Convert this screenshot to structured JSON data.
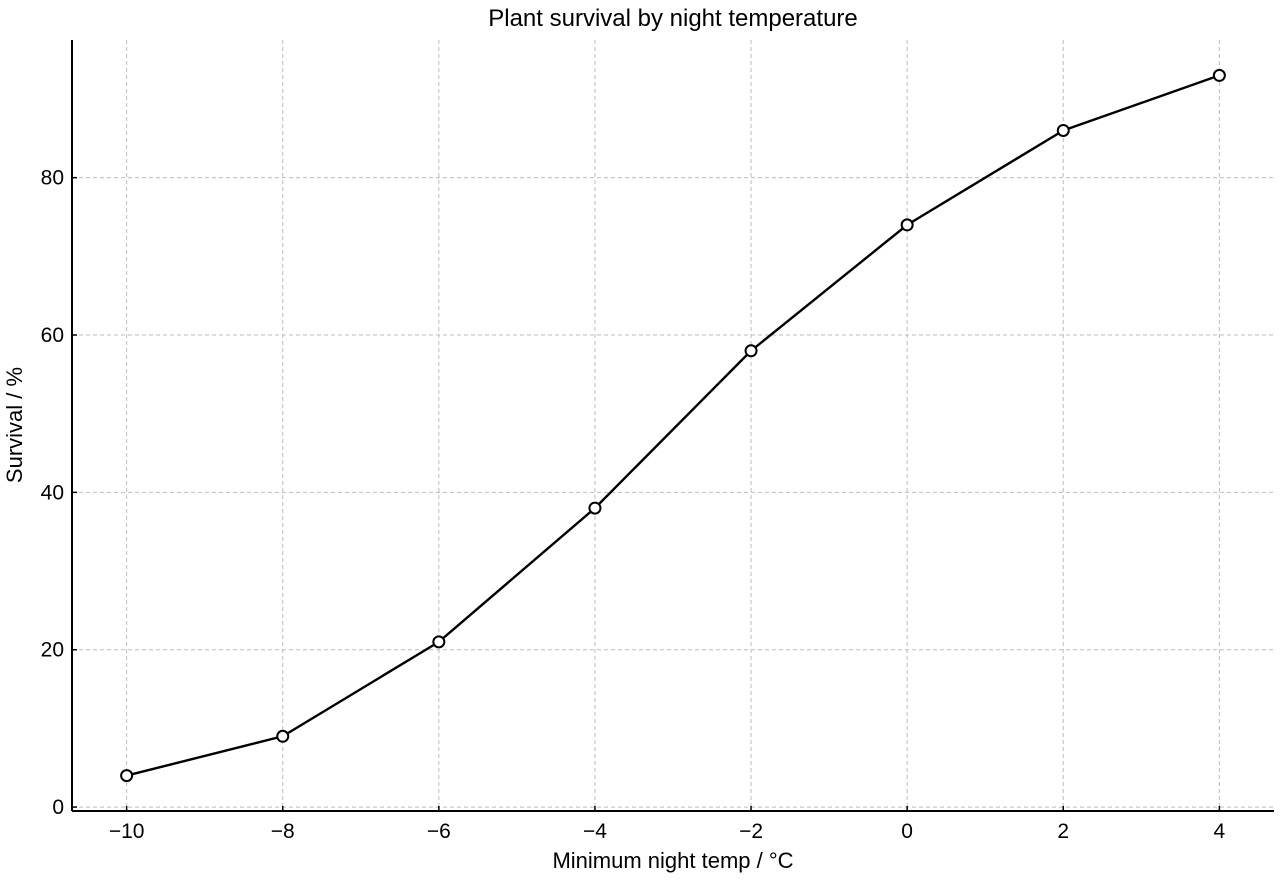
{
  "chart_data": {
    "type": "line",
    "title": "Plant survival by night temperature",
    "xlabel": "Minimum night temp / °C",
    "ylabel": "Survival / %",
    "xlim": [
      -10.7,
      4.7
    ],
    "ylim": [
      -0.5,
      97.5
    ],
    "x_ticks": [
      -10,
      -8,
      -6,
      -4,
      -2,
      0,
      2,
      4
    ],
    "x_tick_labels": [
      "−10",
      "−8",
      "−6",
      "−4",
      "−2",
      "0",
      "2",
      "4"
    ],
    "y_ticks": [
      0,
      20,
      40,
      60,
      80
    ],
    "y_tick_labels": [
      "0",
      "20",
      "40",
      "60",
      "80"
    ],
    "grid": true,
    "series": [
      {
        "x": [
          -10,
          -8,
          -6,
          -4,
          -2,
          0,
          2,
          4
        ],
        "y": [
          4,
          9,
          21,
          38,
          58,
          74,
          86,
          93
        ],
        "color": "#000000",
        "marker": "open-circle"
      }
    ]
  }
}
